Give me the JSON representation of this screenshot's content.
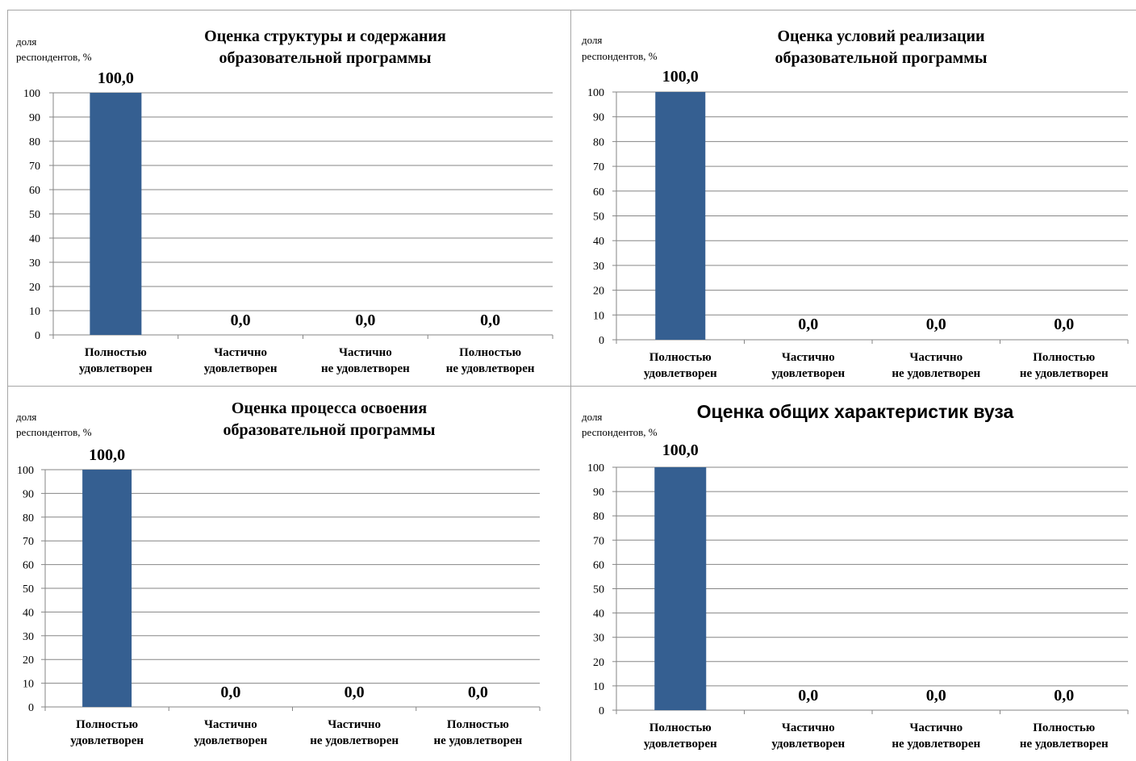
{
  "chart_data": [
    {
      "type": "bar",
      "title": [
        "Оценка структуры и содержания",
        "образовательной программы"
      ],
      "ylabel": [
        "доля",
        "респондентов, %"
      ],
      "categories": [
        [
          "Полностью",
          "удовлетворен"
        ],
        [
          "Частично",
          "удовлетворен"
        ],
        [
          "Частично",
          "не удовлетворен"
        ],
        [
          "Полностью",
          "не удовлетворен"
        ]
      ],
      "values": [
        100.0,
        0.0,
        0.0,
        0.0
      ],
      "data_labels": [
        "100,0",
        "0,0",
        "0,0",
        "0,0"
      ],
      "ylim": [
        0,
        100
      ],
      "yticks": [
        0,
        10,
        20,
        30,
        40,
        50,
        60,
        70,
        80,
        90,
        100
      ],
      "grid": true,
      "bar_color": "#355f91"
    },
    {
      "type": "bar",
      "title": [
        "Оценка условий реализации",
        "образовательной программы"
      ],
      "ylabel": [
        "доля",
        "респондентов, %"
      ],
      "categories": [
        [
          "Полностью",
          "удовлетворен"
        ],
        [
          "Частично",
          "удовлетворен"
        ],
        [
          "Частично",
          "не удовлетворен"
        ],
        [
          "Полностью",
          "не удовлетворен"
        ]
      ],
      "values": [
        100.0,
        0.0,
        0.0,
        0.0
      ],
      "data_labels": [
        "100,0",
        "0,0",
        "0,0",
        "0,0"
      ],
      "ylim": [
        0,
        100
      ],
      "yticks": [
        0,
        10,
        20,
        30,
        40,
        50,
        60,
        70,
        80,
        90,
        100
      ],
      "grid": true,
      "bar_color": "#355f91"
    },
    {
      "type": "bar",
      "title": [
        "Оценка процесса освоения",
        "образовательной программы"
      ],
      "ylabel": [
        "доля",
        "респондентов, %"
      ],
      "categories": [
        [
          "Полностью",
          "удовлетворен"
        ],
        [
          "Частично",
          "удовлетворен"
        ],
        [
          "Частично",
          "не удовлетворен"
        ],
        [
          "Полностью",
          "не удовлетворен"
        ]
      ],
      "values": [
        100.0,
        0.0,
        0.0,
        0.0
      ],
      "data_labels": [
        "100,0",
        "0,0",
        "0,0",
        "0,0"
      ],
      "ylim": [
        0,
        100
      ],
      "yticks": [
        0,
        10,
        20,
        30,
        40,
        50,
        60,
        70,
        80,
        90,
        100
      ],
      "grid": true,
      "bar_color": "#355f91"
    },
    {
      "type": "bar",
      "title": [
        "Оценка общих характеристик вуза"
      ],
      "ylabel": [
        "доля",
        "респондентов, %"
      ],
      "categories": [
        [
          "Полностью",
          "удовлетворен"
        ],
        [
          "Частично",
          "удовлетворен"
        ],
        [
          "Частично",
          "не удовлетворен"
        ],
        [
          "Полностью",
          "не удовлетворен"
        ]
      ],
      "values": [
        100.0,
        0.0,
        0.0,
        0.0
      ],
      "data_labels": [
        "100,0",
        "0,0",
        "0,0",
        "0,0"
      ],
      "ylim": [
        0,
        100
      ],
      "yticks": [
        0,
        10,
        20,
        30,
        40,
        50,
        60,
        70,
        80,
        90,
        100
      ],
      "grid": true,
      "bar_color": "#355f91"
    }
  ]
}
